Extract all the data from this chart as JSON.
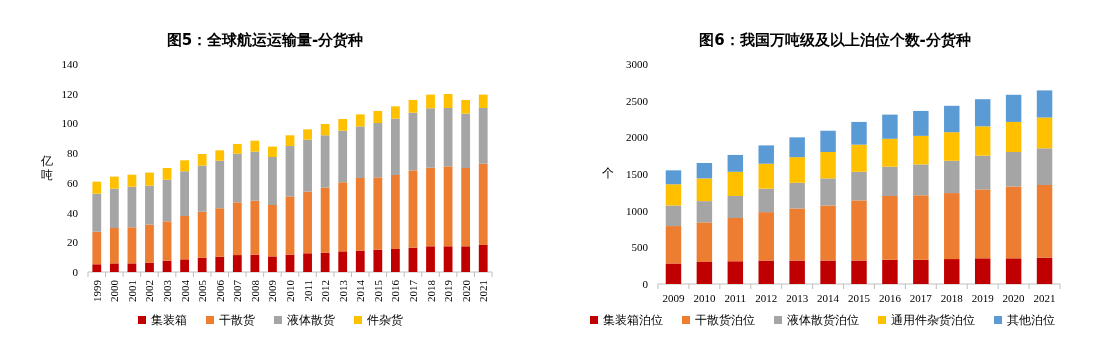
{
  "chart_data": [
    {
      "type": "bar",
      "title": "图5：全球航运运输量-分货种",
      "ylabel": "亿吨",
      "stacked": true,
      "legend": "bottom",
      "categories": [
        "1999",
        "2000",
        "2001",
        "2002",
        "2003",
        "2004",
        "2005",
        "2006",
        "2007",
        "2008",
        "2009",
        "2010",
        "2011",
        "2012",
        "2013",
        "2014",
        "2015",
        "2016",
        "2017",
        "2018",
        "2019",
        "2020",
        "2021"
      ],
      "ylim": [
        0,
        140
      ],
      "yticks": [
        0,
        20,
        40,
        60,
        80,
        100,
        120,
        140
      ],
      "series": [
        {
          "name": "集装箱",
          "color": "#c00000",
          "values": [
            5.2,
            5.8,
            5.8,
            6.3,
            7.6,
            8.5,
            9.6,
            10.3,
            11.4,
            11.7,
            10.5,
            11.7,
            12.6,
            13.0,
            13.9,
            14.4,
            15.0,
            15.5,
            16.4,
            17.3,
            17.3,
            17.3,
            18.2
          ]
        },
        {
          "name": "干散货",
          "color": "#ed7d31",
          "values": [
            21.9,
            23.8,
            24.3,
            25.6,
            26.5,
            29.2,
            31.0,
            32.6,
            35.5,
            36.3,
            34.6,
            39.2,
            41.5,
            43.8,
            46.5,
            48.9,
            48.7,
            49.8,
            52.0,
            52.9,
            53.8,
            52.7,
            54.7
          ]
        },
        {
          "name": "液体散货",
          "color": "#a5a5a5",
          "values": [
            25.6,
            26.5,
            27.3,
            26.2,
            28.0,
            30.1,
            31.0,
            32.0,
            32.7,
            33.0,
            32.3,
            33.9,
            35.0,
            35.2,
            34.7,
            34.7,
            36.6,
            37.9,
            38.8,
            40.0,
            39.3,
            36.6,
            37.5
          ]
        },
        {
          "name": "件杂货",
          "color": "#ffc000",
          "values": [
            8.1,
            8.1,
            8.1,
            8.8,
            7.9,
            7.4,
            7.8,
            7.0,
            6.6,
            7.4,
            7.0,
            7.2,
            6.9,
            7.6,
            7.9,
            8.1,
            8.1,
            8.3,
            8.6,
            9.2,
            9.4,
            9.2,
            9.0
          ]
        }
      ]
    },
    {
      "type": "bar",
      "title": "图6：我国万吨级及以上泊位个数-分货种",
      "ylabel": "个",
      "stacked": true,
      "legend": "bottom",
      "categories": [
        "2009",
        "2010",
        "2011",
        "2012",
        "2013",
        "2014",
        "2015",
        "2016",
        "2017",
        "2018",
        "2019",
        "2020",
        "2021"
      ],
      "ylim": [
        0,
        3000
      ],
      "yticks": [
        0,
        500,
        1000,
        1500,
        2000,
        2500,
        3000
      ],
      "series": [
        {
          "name": "集装箱泊位",
          "color": "#c00000",
          "values": [
            280,
            300,
            310,
            320,
            320,
            320,
            320,
            330,
            330,
            340,
            350,
            350,
            360
          ]
        },
        {
          "name": "干散货泊位",
          "color": "#ed7d31",
          "values": [
            510,
            540,
            590,
            660,
            710,
            750,
            820,
            870,
            880,
            900,
            940,
            980,
            990
          ]
        },
        {
          "name": "液体散货泊位",
          "color": "#a5a5a5",
          "values": [
            280,
            290,
            300,
            320,
            350,
            370,
            390,
            400,
            420,
            440,
            460,
            470,
            500
          ]
        },
        {
          "name": "通用件杂货泊位",
          "color": "#ffc000",
          "values": [
            290,
            310,
            330,
            340,
            350,
            360,
            370,
            380,
            390,
            390,
            400,
            410,
            420
          ]
        },
        {
          "name": "其他泊位",
          "color": "#5b9bd5",
          "values": [
            190,
            210,
            230,
            250,
            270,
            290,
            310,
            330,
            340,
            360,
            370,
            370,
            370
          ]
        }
      ]
    }
  ]
}
